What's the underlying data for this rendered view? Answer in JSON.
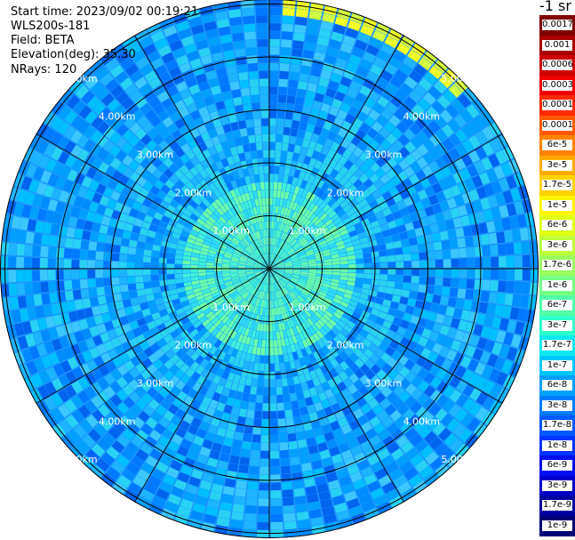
{
  "info": {
    "start_time": "Start time: 2023/09/02 00:19:21",
    "instrument": "WLS200s-181",
    "field": "Field: BETA",
    "elevation": "Elevation(deg): 35.30",
    "nrays": "NRays: 120"
  },
  "range_labels": [
    "1.00km",
    "2.00km",
    "3.00km",
    "4.00km",
    "5.00km"
  ],
  "colorbar": {
    "unit_label": "-1 sr",
    "ticks": [
      "0.0017",
      "0.001",
      "0.0006",
      "0.0003",
      "0.00017",
      "0.0001",
      "6e-5",
      "3e-5",
      "1.7e-5",
      "1e-5",
      "6e-6",
      "3e-6",
      "1.7e-6",
      "1e-6",
      "6e-7",
      "3e-7",
      "1.7e-7",
      "1e-7",
      "6e-8",
      "3e-8",
      "1.7e-8",
      "1e-8",
      "6e-9",
      "3e-9",
      "1.7e-9",
      "1e-9"
    ],
    "colors": [
      "#7f0000",
      "#a80000",
      "#cc0000",
      "#ee0000",
      "#ff2a00",
      "#ff5a00",
      "#ff8200",
      "#ffaa00",
      "#ffd200",
      "#fff700",
      "#e0ff15",
      "#bdff3a",
      "#98ff5f",
      "#75ff82",
      "#50ffa7",
      "#2effca",
      "#0de8ef",
      "#00c6ff",
      "#00a0ff",
      "#007cff",
      "#0058ff",
      "#0034ff",
      "#000ff0",
      "#0000c8",
      "#00009f",
      "#000077"
    ]
  }
}
